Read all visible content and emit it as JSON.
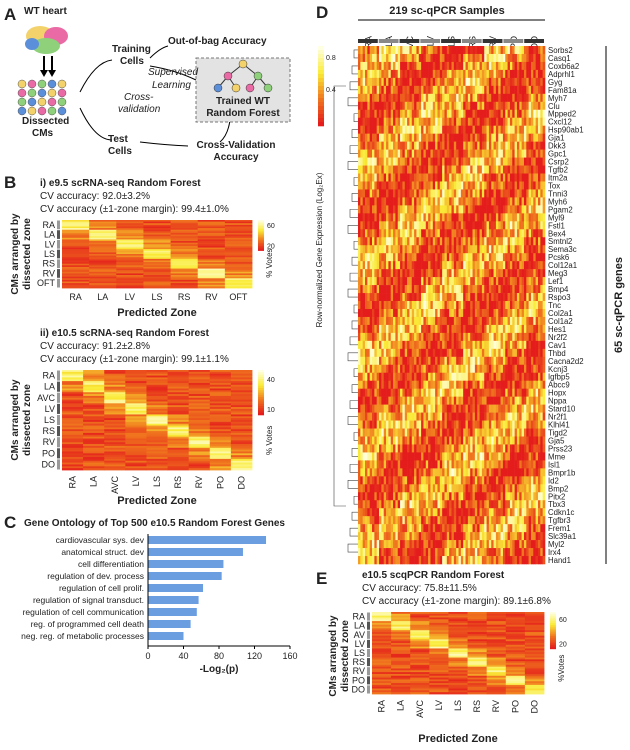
{
  "panel_a": {
    "label": "A",
    "wt_heart": "WT heart",
    "training_cells": [
      "Training",
      "Cells"
    ],
    "out_of_bag": "Out-of-bag Accuracy",
    "supervised": [
      "Supervised",
      "Learning"
    ],
    "trained": [
      "Trained WT",
      "Random Forest"
    ],
    "dissected": [
      "Dissected",
      "CMs"
    ],
    "cross_validation": [
      "Cross-",
      "validation"
    ],
    "test_cells": [
      "Test",
      "Cells"
    ],
    "cv_accuracy": [
      "Cross-Validation",
      "Accuracy"
    ]
  },
  "panel_b": {
    "label": "B",
    "heatmaps": [
      {
        "title": "i) e9.5 scRNA-seq Random Forest",
        "cv": "CV accuracy: 92.0±3.2%",
        "cv_margin": "CV accuracy (±1-zone margin): 99.4±1.0%",
        "y_label": [
          "CMs arranged by",
          "dissected zone"
        ],
        "x_label": "Predicted Zone",
        "rows": [
          "RA",
          "LA",
          "LV",
          "LS",
          "RS",
          "RV",
          "OFT"
        ],
        "cols": [
          "RA",
          "LA",
          "LV",
          "LS",
          "RS",
          "RV",
          "OFT"
        ],
        "colorbar_ticks": [
          "60",
          "20"
        ],
        "colorbar_label": "% Votes"
      },
      {
        "title": "ii) e10.5 scRNA-seq Random Forest",
        "cv": "CV accuracy: 91.2±2.8%",
        "cv_margin": "CV accuracy (±1-zone margin): 99.1±1.1%",
        "y_label": [
          "CMs arranged by",
          "dissected zone"
        ],
        "x_label": "Predicted Zone",
        "rows": [
          "RA",
          "LA",
          "AVC",
          "LV",
          "LS",
          "RS",
          "RV",
          "PO",
          "DO"
        ],
        "cols": [
          "RA",
          "LA",
          "AVC",
          "LV",
          "LS",
          "RS",
          "RV",
          "PO",
          "DO"
        ],
        "colorbar_ticks": [
          "40",
          "10"
        ],
        "colorbar_label": "% Votes"
      }
    ]
  },
  "chart_data": {
    "type": "bar",
    "label": "C",
    "title": "Gene Ontology of Top 500 e10.5 Random Forest Genes",
    "categories": [
      "cardiovascular sys. dev",
      "anatomical struct. dev",
      "cell differentiation",
      "regulation of dev. process",
      "regulation of cell prolif.",
      "regulation of signal transduct.",
      "regulation of cell communication",
      "reg. of programmed cell death",
      "neg. reg. of metabolic processes"
    ],
    "values": [
      133,
      107,
      85,
      83,
      62,
      57,
      55,
      48,
      40
    ],
    "color": "#6a9ee0",
    "xlim": [
      0,
      160
    ],
    "xticks": [
      0,
      40,
      80,
      120,
      160
    ],
    "x_label": "-Log₂(p)"
  },
  "panel_d": {
    "label": "D",
    "title": "219 sc-qPCR Samples",
    "cols": [
      "RA",
      "LA",
      "AVC",
      "LV",
      "LS",
      "RS",
      "RV",
      "PO",
      "DO"
    ],
    "colorbar_ticks": [
      "0.8",
      "0.4"
    ],
    "colorbar_label": "Row-normalized Gene Expression (Log₂Ex)",
    "side_label": "65 sc-qPCR genes",
    "genes": [
      "Sorbs2",
      "Casq1",
      "Coxb6a2",
      "Adprhl1",
      "Gyg",
      "Fam81a",
      "Myh7",
      "Clu",
      "Mpped2",
      "Cxcl12",
      "Hsp90ab1",
      "Gja1",
      "Dkk3",
      "Gpc1",
      "Csrp2",
      "Tgfb2",
      "Itm2a",
      "Tox",
      "Tnni3",
      "Myh6",
      "Pgam2",
      "Myl9",
      "Fstl1",
      "Bex4",
      "Smtnl2",
      "Sema3c",
      "Pcsk6",
      "Col12a1",
      "Meg3",
      "Lef1",
      "Bmp4",
      "Rspo3",
      "Tnc",
      "Col2a1",
      "Col1a2",
      "Hes1",
      "Nr2f2",
      "Cav1",
      "Thbd",
      "Cacna2d2",
      "Kcnj3",
      "Igfbp5",
      "Abcc9",
      "Hopx",
      "Nppa",
      "Stard10",
      "Nr2f1",
      "Klhl41",
      "Tigd2",
      "Gja5",
      "Prss23",
      "Mme",
      "Isl1",
      "Bmpr1b",
      "Id2",
      "Bmp2",
      "Pitx2",
      "Tbx3",
      "Cdkn1c",
      "Tgfbr3",
      "Frem1",
      "Slc39a1",
      "Myl2",
      "Irx4",
      "Hand1"
    ]
  },
  "panel_e": {
    "label": "E",
    "title": "e10.5 scqPCR Random Forest",
    "cv": "CV accuracy: 75.8±11.5%",
    "cv_margin": "CV accuracy (±1-zone margin): 89.1±6.8%",
    "y_label": [
      "CMs arranged by",
      "dissected zone"
    ],
    "x_label": "Predicted Zone",
    "rows": [
      "RA",
      "LA",
      "AV",
      "LV",
      "LS",
      "RS",
      "RV",
      "PO",
      "DO"
    ],
    "cols": [
      "RA",
      "LA",
      "AVC",
      "LV",
      "LS",
      "RS",
      "RV",
      "PO",
      "DO"
    ],
    "colorbar_ticks": [
      "60",
      "20"
    ],
    "colorbar_label": "%Votes"
  }
}
